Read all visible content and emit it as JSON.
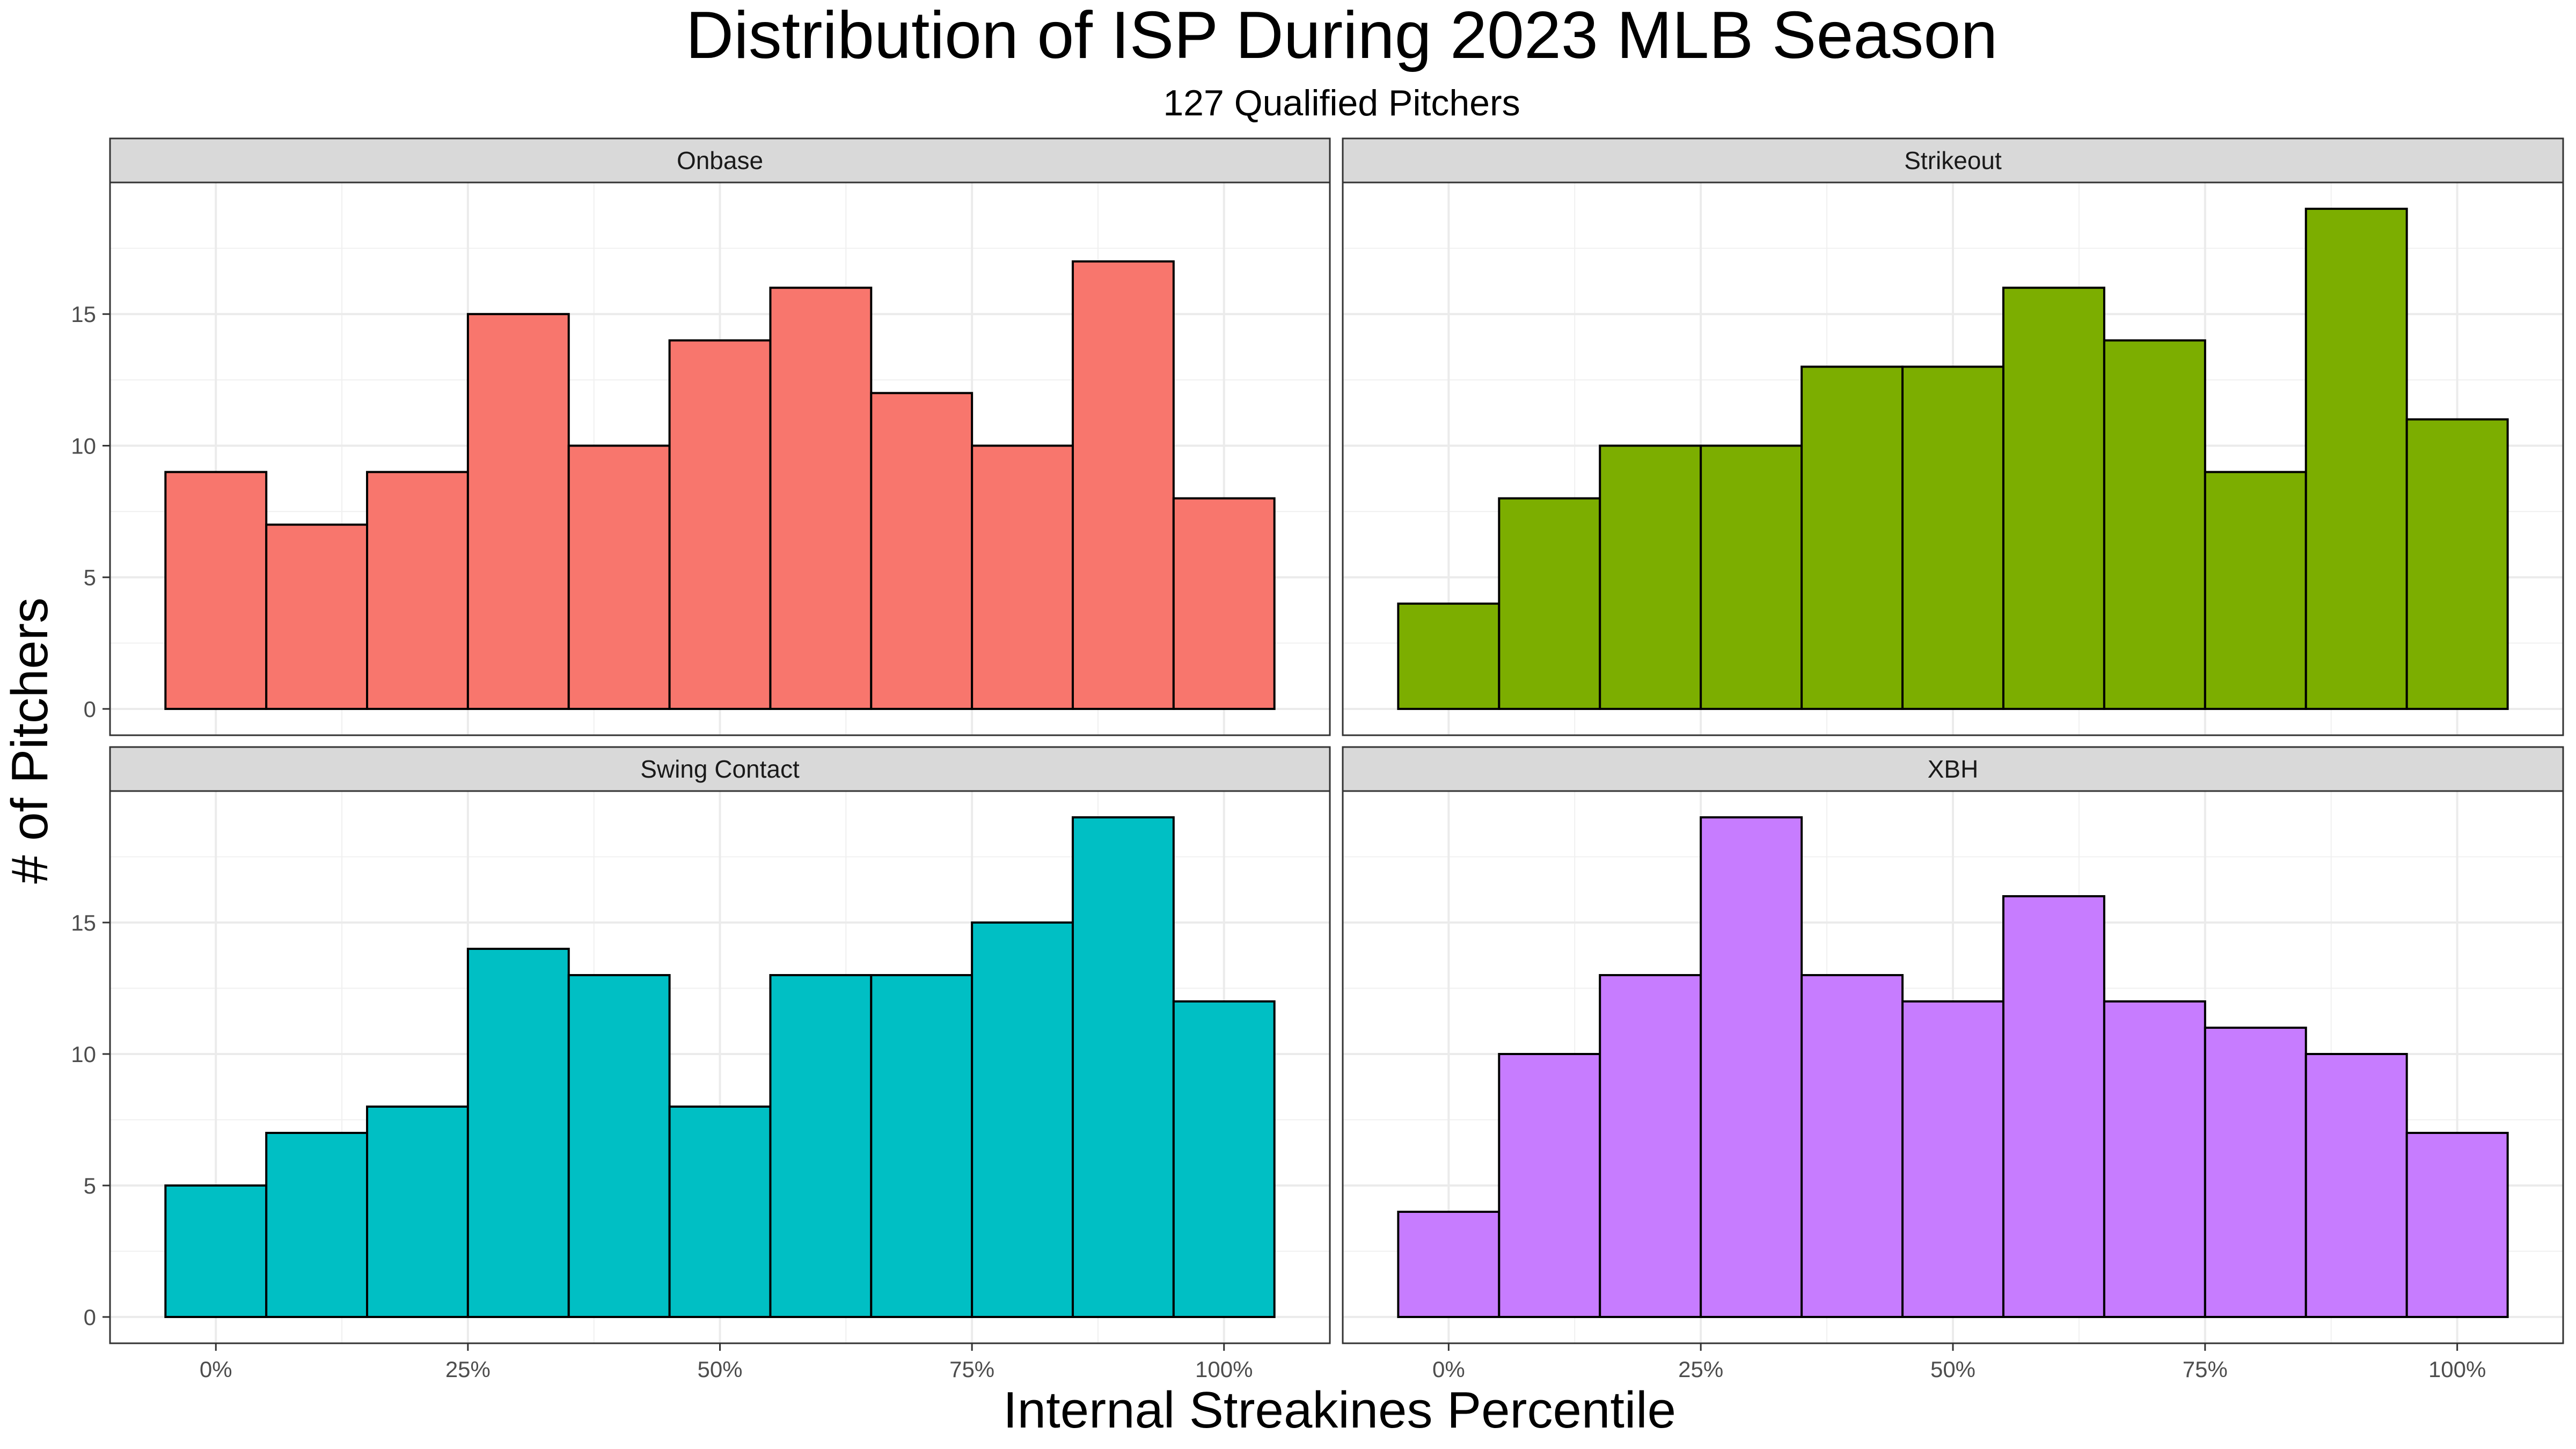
{
  "chart_data": {
    "type": "bar",
    "title": "Distribution of ISP During 2023 MLB Season",
    "subtitle": "127 Qualified Pitchers",
    "xlabel": "Internal Streakines Percentile",
    "ylabel": "# of Pitchers",
    "x": [
      0,
      10,
      20,
      30,
      40,
      50,
      60,
      70,
      80,
      90,
      100
    ],
    "bin_width": 10,
    "xlim": [
      -10.5,
      110.5
    ],
    "ylim": [
      -1,
      20
    ],
    "x_ticks": [
      0,
      25,
      50,
      75,
      100
    ],
    "x_tick_labels": [
      "0%",
      "25%",
      "50%",
      "75%",
      "100%"
    ],
    "y_ticks": [
      0,
      5,
      10,
      15
    ],
    "y_tick_labels": [
      "0",
      "5",
      "10",
      "15"
    ],
    "grid": true,
    "legend": "none",
    "bar_outline_color": "#000000",
    "series": [
      {
        "name": "Onbase",
        "color": "#F8766D",
        "values": [
          9,
          7,
          9,
          15,
          10,
          14,
          16,
          12,
          10,
          17,
          8
        ]
      },
      {
        "name": "Strikeout",
        "color": "#7CAE00",
        "values": [
          4,
          8,
          10,
          10,
          13,
          13,
          16,
          14,
          9,
          19,
          11
        ]
      },
      {
        "name": "Swing Contact",
        "color": "#00BFC4",
        "values": [
          5,
          7,
          8,
          14,
          13,
          8,
          13,
          13,
          15,
          19,
          12
        ]
      },
      {
        "name": "XBH",
        "color": "#C77CFF",
        "values": [
          4,
          10,
          13,
          19,
          13,
          12,
          16,
          12,
          11,
          10,
          7
        ]
      }
    ]
  }
}
